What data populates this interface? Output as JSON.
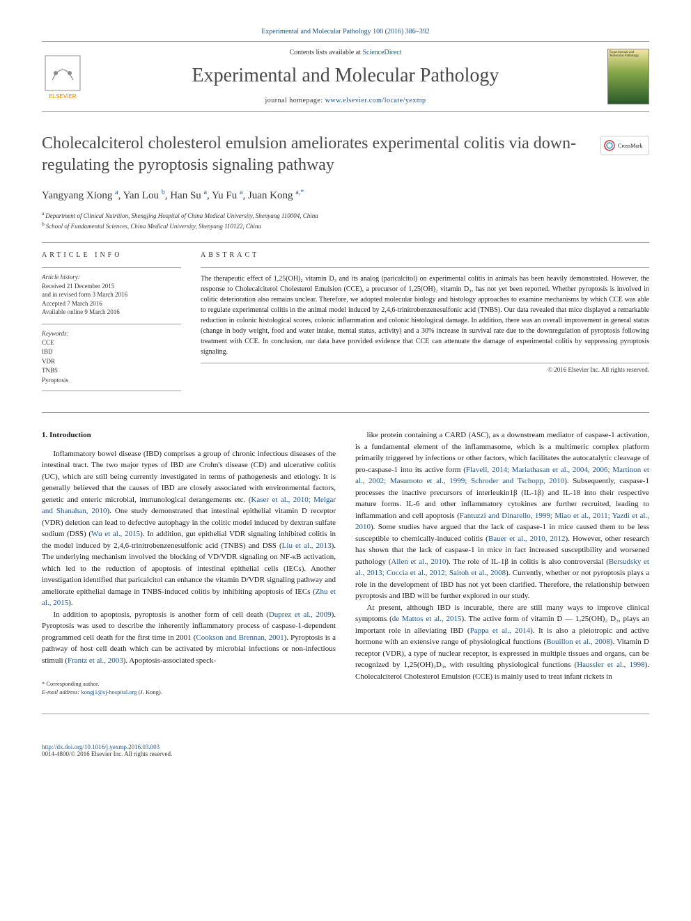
{
  "top_link": "Experimental and Molecular Pathology 100 (2016) 386–392",
  "header": {
    "contents_prefix": "Contents lists available at ",
    "contents_link": "ScienceDirect",
    "journal_name": "Experimental and Molecular Pathology",
    "homepage_prefix": "journal homepage: ",
    "homepage_link": "www.elsevier.com/locate/yexmp",
    "cover_text": "Experimental and Molecular Pathology"
  },
  "crossmark_label": "CrossMark",
  "article_title": "Cholecalciterol cholesterol emulsion ameliorates experimental colitis via down-regulating the pyroptosis signaling pathway",
  "authors_html": "Yangyang Xiong <sup>a</sup>, Yan Lou <sup>b</sup>, Han Su <sup>a</sup>, Yu Fu <sup>a</sup>, Juan Kong <sup>a,*</sup>",
  "authors": [
    {
      "name": "Yangyang Xiong",
      "aff": "a"
    },
    {
      "name": "Yan Lou",
      "aff": "b"
    },
    {
      "name": "Han Su",
      "aff": "a"
    },
    {
      "name": "Yu Fu",
      "aff": "a"
    },
    {
      "name": "Juan Kong",
      "aff": "a,*"
    }
  ],
  "affiliations": [
    {
      "sup": "a",
      "text": "Department of Clinical Nutrition, Shengjing Hospital of China Medical University, Shenyang 110004, China"
    },
    {
      "sup": "b",
      "text": "School of Fundamental Sciences, China Medical University, Shenyang 110122, China"
    }
  ],
  "info": {
    "heading": "ARTICLE INFO",
    "history_label": "Article history:",
    "history": [
      "Received 21 December 2015",
      "and in revised form 3 March 2016",
      "Accepted 7 March 2016",
      "Available online 9 March 2016"
    ],
    "keywords_label": "Keywords:",
    "keywords": [
      "CCE",
      "IBD",
      "VDR",
      "TNBS",
      "Pyroptosis"
    ]
  },
  "abstract": {
    "heading": "ABSTRACT",
    "text": "The therapeutic effect of 1,25(OH)₂ vitamin D₃ and its analog (paricalcitol) on experimental colitis in animals has been heavily demonstrated. However, the response to Cholecalciterol Cholesterol Emulsion (CCE), a precursor of 1,25(OH)₂ vitamin D₃, has not yet been reported. Whether pyroptosis is involved in colitic deterioration also remains unclear. Therefore, we adopted molecular biology and histology approaches to examine mechanisms by which CCE was able to regulate experimental colitis in the animal model induced by 2,4,6-trinitrobenzenesulfonic acid (TNBS). Our data revealed that mice displayed a remarkable reduction in colonic histological scores, colonic inflammation and colonic histological damage. In addition, there was an overall improvement in general status (change in body weight, food and water intake, mental status, activity) and a 30% increase in survival rate due to the downregulation of pyroptosis following treatment with CCE. In conclusion, our data have provided evidence that CCE can attenuate the damage of experimental colitis by suppressing pyroptosis signaling.",
    "copyright": "© 2016 Elsevier Inc. All rights reserved."
  },
  "body": {
    "section_heading": "1. Introduction",
    "left_paras": [
      "Inflammatory bowel disease (IBD) comprises a group of chronic infectious diseases of the intestinal tract. The two major types of IBD are Crohn's disease (CD) and ulcerative colitis (UC), which are still being currently investigated in terms of pathogenesis and etiology. It is generally believed that the causes of IBD are closely associated with environmental factors, genetic and enteric microbial, immunological derangements etc. (|Kaser et al., 2010; Melgar and Shanahan, 2010|). One study demonstrated that intestinal epithelial vitamin D receptor (VDR) deletion can lead to defective autophagy in the colitic model induced by dextran sulfate sodium (DSS) (|Wu et al., 2015|). In addition, gut epithelial VDR signaling inhibited colitis in the model induced by 2,4,6-trinitrobenzenesulfonic acid (TNBS) and DSS (|Liu et al., 2013|). The underlying mechanism involved the blocking of VD/VDR signaling on NF-κB activation, which led to the reduction of apoptosis of intestinal epithelial cells (IECs). Another investigation identified that paricalcitol can enhance the vitamin D/VDR signaling pathway and ameliorate epithelial damage in TNBS-induced colitis by inhibiting apoptosis of IECs (|Zhu et al., 2015|).",
      "In addition to apoptosis, pyroptosis is another form of cell death (|Duprez et al., 2009|). Pyroptosis was used to describe the inherently inflammatory process of caspase-1-dependent programmed cell death for the first time in 2001 (|Cookson and Brennan, 2001|). Pyroptosis is a pathway of host cell death which can be activated by microbial infections or non-infectious stimuli (|Frantz et al., 2003|). Apoptosis-associated speck-"
    ],
    "right_paras": [
      "like protein containing a CARD (ASC), as a downstream mediator of caspase-1 activation, is a fundamental element of the inflammasome, which is a multimeric complex platform primarily triggered by infections or other factors, which facilitates the autocatalytic cleavage of pro-caspase-1 into its active form (|Flavell, 2014; Mariathasan et al., 2004, 2006; Martinon et al., 2002; Masumoto et al., 1999; Schroder and Tschopp, 2010|). Subsequently, caspase-1 processes the inactive precursors of interleukin1β (IL-1β) and IL-18 into their respective mature forms. IL-6 and other inflammatory cytokines are further recruited, leading to inflammation and cell apoptosis (|Fantuzzi and Dinarello, 1999; Miao et al., 2011; Yazdi et al., 2010|). Some studies have argued that the lack of caspase-1 in mice caused them to be less susceptible to chemically-induced colitis (|Bauer et al., 2010, 2012|). However, other research has shown that the lack of caspase-1 in mice in fact increased susceptibility and worsened pathology (|Allen et al., 2010|). The role of IL-1β in colitis is also controversial (|Bersudsky et al., 2013; Coccia et al., 2012; Saitoh et al., 2008|). Currently, whether or not pyroptosis plays a role in the development of IBD has not yet been clarified. Therefore, the relationship between pyroptosis and IBD will be further explored in our study.",
      "At present, although IBD is incurable, there are still many ways to improve clinical symptoms (|de Mattos et al., 2015|). The active form of vitamin D — 1,25(OH)₂ D₃, plays an important role in alleviating IBD (|Pappa et al., 2014|). It is also a pleiotropic and active hormone with an extensive range of physiological functions (|Bouillon et al., 2008|). Vitamin D receptor (VDR), a type of nuclear receptor, is expressed in multiple tissues and organs, can be recognized by 1,25(OH)₂D₃, with resulting physiological functions (|Haussler et al., 1998|). Cholecalciterol Cholesterol Emulsion (CCE) is mainly used to treat infant rickets in"
    ]
  },
  "corr": {
    "note": "* Corresponding author.",
    "email_label": "E-mail address:",
    "email": "kongj1@sj-hospital.org",
    "email_suffix": "(J. Kong)."
  },
  "footer": {
    "doi": "http://dx.doi.org/10.1016/j.yexmp.2016.03.003",
    "issn": "0014-4800/© 2016 Elsevier Inc. All rights reserved."
  },
  "colors": {
    "link": "#1a5490",
    "text": "#1a1a1a",
    "muted": "#333333",
    "rule": "#999999",
    "elsevier_orange": "#ef8200",
    "elsevier_grey": "#8a8a8a"
  }
}
